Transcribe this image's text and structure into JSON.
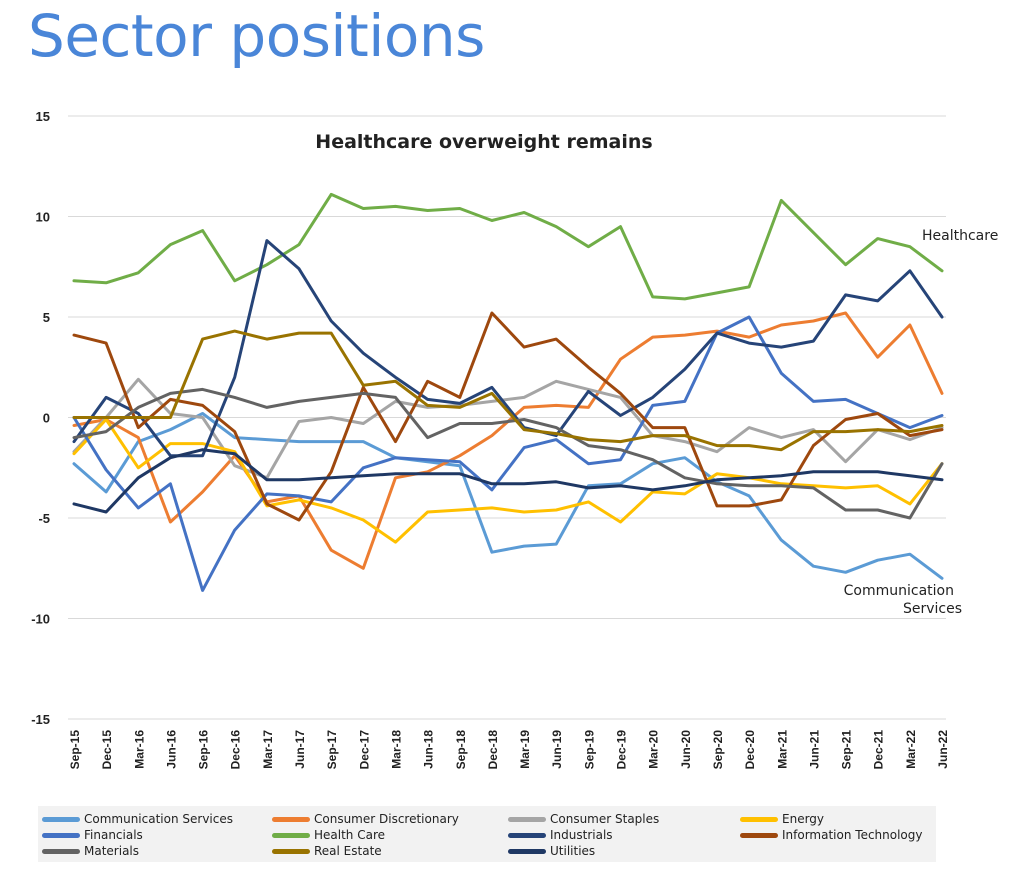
{
  "page_title": "Sector positions",
  "chart_data": {
    "type": "line",
    "title": "Healthcare overweight remains",
    "xlabel": "",
    "ylabel": "",
    "ylim": [
      -15,
      15
    ],
    "yticks": [
      15,
      10,
      5,
      0,
      -5,
      -10,
      -15
    ],
    "categories": [
      "Sep-15",
      "Dec-15",
      "Mar-16",
      "Jun-16",
      "Sep-16",
      "Dec-16",
      "Mar-17",
      "Jun-17",
      "Sep-17",
      "Dec-17",
      "Mar-18",
      "Jun-18",
      "Sep-18",
      "Dec-18",
      "Mar-19",
      "Jun-19",
      "Sep-19",
      "Dec-19",
      "Mar-20",
      "Jun-20",
      "Sep-20",
      "Dec-20",
      "Mar-21",
      "Jun-21",
      "Sep-21",
      "Dec-21",
      "Mar-22",
      "Jun-22"
    ],
    "annotations": [
      {
        "text": "Healthcare",
        "series": "Health Care"
      },
      {
        "text": "Communication Services",
        "series": "Communication Services"
      }
    ],
    "series": [
      {
        "name": "Communication Services",
        "color": "#5b9bd5",
        "values": [
          -2.3,
          -3.7,
          -1.2,
          -0.6,
          0.2,
          -1.0,
          -1.1,
          -1.2,
          -1.2,
          -1.2,
          -2.0,
          -2.2,
          -2.4,
          -6.7,
          -6.4,
          -6.3,
          -3.4,
          -3.3,
          -2.3,
          -2.0,
          -3.2,
          -3.9,
          -6.1,
          -7.4,
          -7.7,
          -7.1,
          -6.8,
          -8.0
        ]
      },
      {
        "name": "Consumer Discretionary",
        "color": "#ed7d31",
        "values": [
          -0.4,
          -0.1,
          -1.0,
          -5.2,
          -3.7,
          -1.9,
          -4.2,
          -3.9,
          -6.6,
          -7.5,
          -3.0,
          -2.7,
          -1.9,
          -0.9,
          0.5,
          0.6,
          0.5,
          2.9,
          4.0,
          4.1,
          4.3,
          4.0,
          4.6,
          4.8,
          5.2,
          3.0,
          4.6,
          1.2
        ]
      },
      {
        "name": "Consumer Staples",
        "color": "#a5a5a5",
        "values": [
          -1.7,
          0.0,
          1.9,
          0.2,
          0.0,
          -2.4,
          -3.0,
          -0.2,
          0.0,
          -0.3,
          0.8,
          0.5,
          0.6,
          0.8,
          1.0,
          1.8,
          1.4,
          1.0,
          -0.9,
          -1.2,
          -1.7,
          -0.5,
          -1.0,
          -0.6,
          -2.2,
          -0.6,
          -1.1,
          -0.5
        ]
      },
      {
        "name": "Energy",
        "color": "#ffc000",
        "values": [
          -1.8,
          -0.1,
          -2.5,
          -1.3,
          -1.3,
          -1.7,
          -4.4,
          -4.1,
          -4.5,
          -5.1,
          -6.2,
          -4.7,
          -4.6,
          -4.5,
          -4.7,
          -4.6,
          -4.2,
          -5.2,
          -3.7,
          -3.8,
          -2.8,
          -3.0,
          -3.3,
          -3.4,
          -3.5,
          -3.4,
          -4.3,
          -2.3
        ]
      },
      {
        "name": "Financials",
        "color": "#4472c4",
        "values": [
          0.0,
          -2.6,
          -4.5,
          -3.3,
          -8.6,
          -5.6,
          -3.8,
          -3.9,
          -4.2,
          -2.5,
          -2.0,
          -2.1,
          -2.2,
          -3.6,
          -1.5,
          -1.1,
          -2.3,
          -2.1,
          0.6,
          0.8,
          4.2,
          5.0,
          2.2,
          0.8,
          0.9,
          0.2,
          -0.5,
          0.1
        ]
      },
      {
        "name": "Health Care",
        "color": "#70ad47",
        "values": [
          6.8,
          6.7,
          7.2,
          8.6,
          9.3,
          6.8,
          7.6,
          8.6,
          11.1,
          10.4,
          10.5,
          10.3,
          10.4,
          9.8,
          10.2,
          9.5,
          8.5,
          9.5,
          6.0,
          5.9,
          6.2,
          6.5,
          10.8,
          9.2,
          7.6,
          8.9,
          8.5,
          7.3
        ]
      },
      {
        "name": "Industrials",
        "color": "#264478",
        "values": [
          -1.2,
          1.0,
          0.2,
          -1.9,
          -1.9,
          2.0,
          8.8,
          7.4,
          4.8,
          3.2,
          2.0,
          0.9,
          0.7,
          1.5,
          -0.5,
          -0.9,
          1.3,
          0.1,
          1.0,
          2.4,
          4.2,
          3.7,
          3.5,
          3.8,
          6.1,
          5.8,
          7.3,
          5.0
        ]
      },
      {
        "name": "Information Technology",
        "color": "#9e480e",
        "values": [
          4.1,
          3.7,
          -0.5,
          0.9,
          0.6,
          -0.7,
          -4.3,
          -5.1,
          -2.7,
          1.5,
          -1.2,
          1.8,
          1.0,
          5.2,
          3.5,
          3.9,
          2.5,
          1.2,
          -0.5,
          -0.5,
          -4.4,
          -4.4,
          -4.1,
          -1.4,
          -0.1,
          0.2,
          -0.9,
          -0.6
        ]
      },
      {
        "name": "Materials",
        "color": "#636363",
        "values": [
          -1.0,
          -0.7,
          0.5,
          1.2,
          1.4,
          1.0,
          0.5,
          0.8,
          1.0,
          1.2,
          1.0,
          -1.0,
          -0.3,
          -0.3,
          -0.1,
          -0.5,
          -1.4,
          -1.6,
          -2.1,
          -3.0,
          -3.3,
          -3.4,
          -3.4,
          -3.5,
          -4.6,
          -4.6,
          -5.0,
          -2.3
        ]
      },
      {
        "name": "Real Estate",
        "color": "#997300",
        "values": [
          0.0,
          0.0,
          0.0,
          0.0,
          3.9,
          4.3,
          3.9,
          4.2,
          4.2,
          1.6,
          1.8,
          0.6,
          0.5,
          1.2,
          -0.6,
          -0.8,
          -1.1,
          -1.2,
          -0.9,
          -0.9,
          -1.4,
          -1.4,
          -1.6,
          -0.7,
          -0.7,
          -0.6,
          -0.7,
          -0.4
        ]
      },
      {
        "name": "Utilities",
        "color": "#1f3864",
        "values": [
          -4.3,
          -4.7,
          -3.0,
          -2.0,
          -1.6,
          -1.8,
          -3.1,
          -3.1,
          -3.0,
          -2.9,
          -2.8,
          -2.8,
          -2.8,
          -3.3,
          -3.3,
          -3.2,
          -3.5,
          -3.4,
          -3.6,
          -3.4,
          -3.1,
          -3.0,
          -2.9,
          -2.7,
          -2.7,
          -2.7,
          -2.9,
          -3.1
        ]
      }
    ]
  }
}
